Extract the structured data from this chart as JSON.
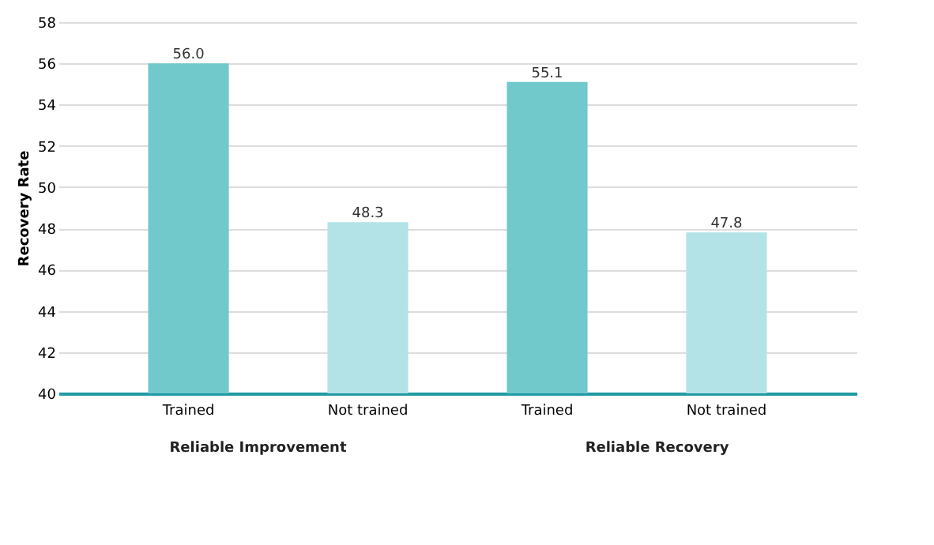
{
  "chart_data": {
    "type": "bar",
    "ylabel": "Recovery Rate",
    "categories": [
      "Trained",
      "Not trained",
      "Trained",
      "Not trained"
    ],
    "values": [
      56.0,
      48.3,
      55.1,
      47.8
    ],
    "colors": [
      "#72c9cc",
      "#b3e3e6",
      "#72c9cc",
      "#b3e3e6"
    ],
    "ylim": [
      40,
      58
    ],
    "yticks": [
      40,
      42,
      44,
      46,
      48,
      50,
      52,
      54,
      56,
      58
    ],
    "grid": "y",
    "value_labels": [
      "56.0",
      "48.3",
      "55.1",
      "47.8"
    ],
    "annotations": [
      "Reliable Improvement",
      "Reliable Recovery"
    ]
  }
}
